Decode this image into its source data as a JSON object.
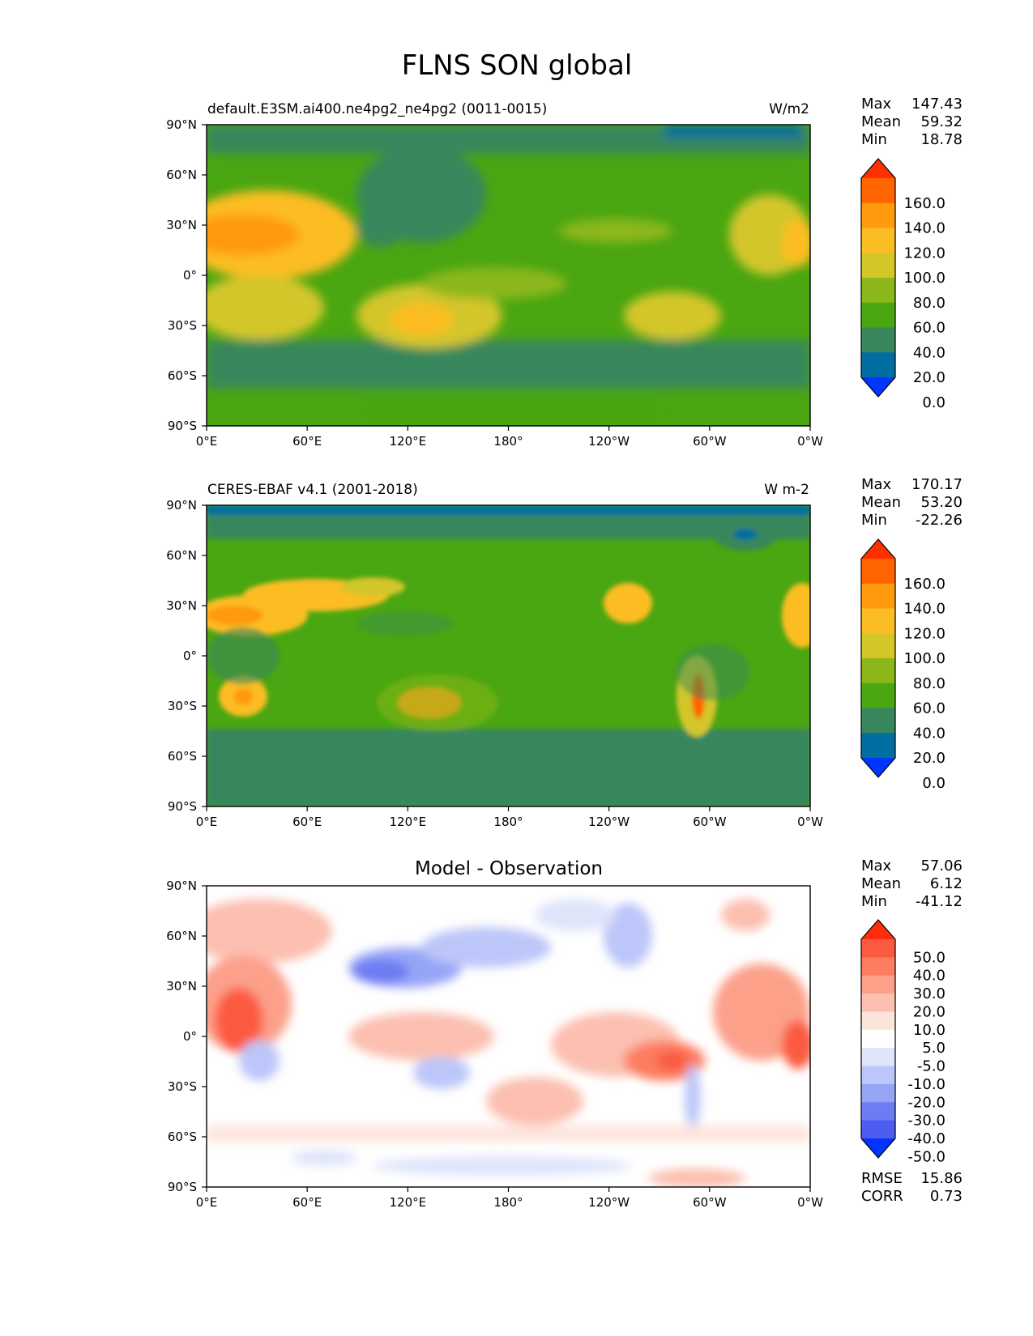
{
  "figure": {
    "title": "FLNS SON global"
  },
  "axes": {
    "lat_ticks": [
      "90°N",
      "60°N",
      "30°N",
      "0°",
      "30°S",
      "60°S",
      "90°S"
    ],
    "lon_ticks": [
      "0°E",
      "60°E",
      "120°E",
      "180°",
      "120°W",
      "60°W",
      "0°W"
    ]
  },
  "stat_labels": {
    "max": "Max",
    "mean": "Mean",
    "min": "Min",
    "rmse": "RMSE",
    "corr": "CORR"
  },
  "chart_data": [
    {
      "type": "heatmap",
      "title_left": "default.E3SM.ai400.ne4pg2_ne4pg2 (0011-0015)",
      "title_right": "W/m2",
      "title_center": "",
      "stats": {
        "max": "147.43",
        "mean": "59.32",
        "min": "18.78"
      },
      "xlim": [
        0,
        360
      ],
      "ylim": [
        -90,
        90
      ],
      "colorbar": {
        "levels": [
          "160.0",
          "140.0",
          "120.0",
          "100.0",
          "80.0",
          "60.0",
          "40.0",
          "20.0",
          "0.0"
        ],
        "colors": [
          "#ff3000",
          "#ff6400",
          "#ff9a0c",
          "#fcbd24",
          "#d3c629",
          "#8bb71b",
          "#4aa611",
          "#38875c",
          "#006ea0",
          "#0036ff"
        ]
      }
    },
    {
      "type": "heatmap",
      "title_left": "CERES-EBAF v4.1 (2001-2018)",
      "title_right": "W m-2",
      "title_center": "",
      "stats": {
        "max": "170.17",
        "mean": "53.20",
        "min": "-22.26"
      },
      "xlim": [
        0,
        360
      ],
      "ylim": [
        -90,
        90
      ],
      "colorbar": {
        "levels": [
          "160.0",
          "140.0",
          "120.0",
          "100.0",
          "80.0",
          "60.0",
          "40.0",
          "20.0",
          "0.0"
        ],
        "colors": [
          "#ff3000",
          "#ff6400",
          "#ff9a0c",
          "#fcbd24",
          "#d3c629",
          "#8bb71b",
          "#4aa611",
          "#38875c",
          "#006ea0",
          "#0036ff"
        ]
      }
    },
    {
      "type": "heatmap",
      "title_left": "",
      "title_right": "",
      "title_center": "Model - Observation",
      "stats": {
        "max": "57.06",
        "mean": "6.12",
        "min": "-41.12",
        "rmse": "15.86",
        "corr": "0.73"
      },
      "xlim": [
        0,
        360
      ],
      "ylim": [
        -90,
        90
      ],
      "colorbar": {
        "levels": [
          "50.0",
          "40.0",
          "30.0",
          "20.0",
          "10.0",
          "5.0",
          "-5.0",
          "-10.0",
          "-20.0",
          "-30.0",
          "-40.0",
          "-50.0"
        ],
        "colors": [
          "#ff2d0a",
          "#fb5a3f",
          "#fd7d61",
          "#fca08a",
          "#fcbfb0",
          "#fde4db",
          "#ffffff",
          "#dfe4fb",
          "#bcc6f9",
          "#96a4f6",
          "#6d7cf3",
          "#4d5cf1",
          "#0432ff"
        ]
      }
    }
  ]
}
